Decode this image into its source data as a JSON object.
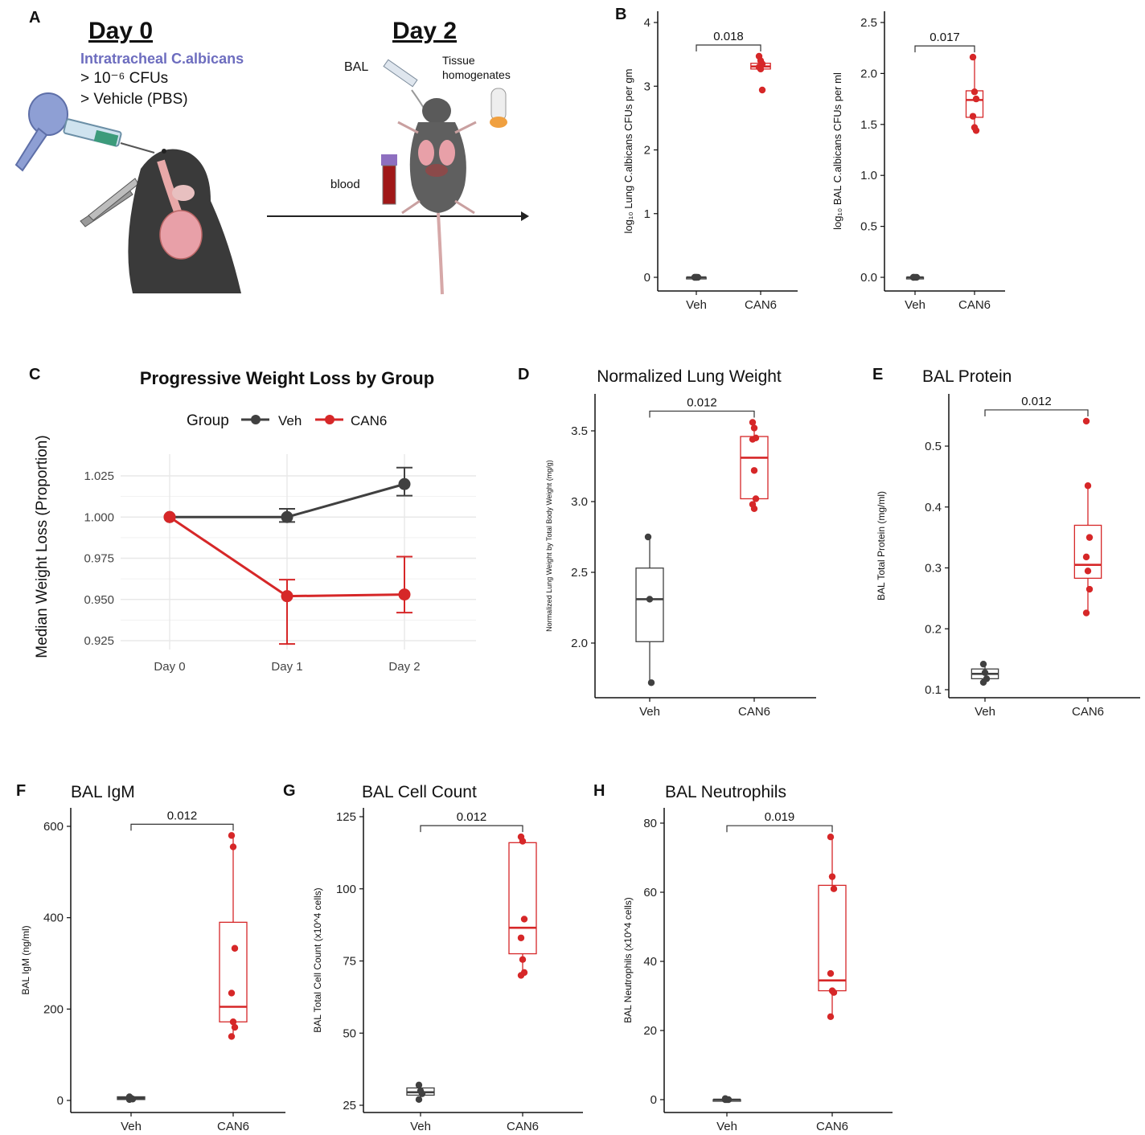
{
  "colors": {
    "veh": "#404040",
    "can6": "#d62728",
    "grid": "#e8e8e8",
    "axis": "#111111"
  },
  "panel_a": {
    "letter": "A",
    "day0_title": "Day 0",
    "day2_title": "Day 2",
    "route": "Intratracheal C.albicans",
    "dose_line": "> 10⁻⁶ CFUs",
    "vehicle_line": "> Vehicle (PBS)",
    "bal_label": "BAL",
    "tissue_label_1": "Tissue",
    "tissue_label_2": "homogenates",
    "blood_label": "blood"
  },
  "chart_data": [
    {
      "id": "B1",
      "letter": "B",
      "type": "box",
      "title": "",
      "ylabel": "log₁₀ Lung C.albicans CFUs per gm",
      "categories": [
        "Veh",
        "CAN6"
      ],
      "ylim": [
        0,
        4
      ],
      "yticks": [
        "0",
        "1",
        "2",
        "3",
        "4"
      ],
      "ytick_values": [
        0,
        1,
        2,
        3,
        4
      ],
      "pvalue": "0.018",
      "groups": [
        {
          "name": "Veh",
          "q1": 0,
          "median": 0,
          "q3": 0,
          "whisker_low": 0,
          "whisker_high": 0,
          "points": [
            0,
            0,
            0,
            0,
            0
          ]
        },
        {
          "name": "CAN6",
          "q1": 3.27,
          "median": 3.31,
          "q3": 3.36,
          "whisker_low": 3.22,
          "whisker_high": 3.47,
          "points": [
            3.47,
            3.4,
            3.35,
            3.3,
            3.27,
            2.94
          ]
        }
      ]
    },
    {
      "id": "B2",
      "letter": "",
      "type": "box",
      "title": "",
      "ylabel": "log₁₀ BAL C.albicans CFUs per ml",
      "categories": [
        "Veh",
        "CAN6"
      ],
      "ylim": [
        0,
        2.5
      ],
      "yticks": [
        "0.0",
        "0.5",
        "1.0",
        "1.5",
        "2.0",
        "2.5"
      ],
      "ytick_values": [
        0,
        0.5,
        1.0,
        1.5,
        2.0,
        2.5
      ],
      "pvalue": "0.017",
      "groups": [
        {
          "name": "Veh",
          "q1": 0,
          "median": 0,
          "q3": 0,
          "whisker_low": 0,
          "whisker_high": 0,
          "points": [
            0,
            0,
            0,
            0
          ]
        },
        {
          "name": "CAN6",
          "q1": 1.57,
          "median": 1.74,
          "q3": 1.83,
          "whisker_low": 1.44,
          "whisker_high": 2.16,
          "points": [
            2.16,
            1.82,
            1.75,
            1.58,
            1.47,
            1.44
          ]
        }
      ]
    },
    {
      "id": "C",
      "letter": "C",
      "type": "line",
      "title": "Progressive Weight Loss by Group",
      "legend_title": "Group",
      "legend_position": "top",
      "xlabel": "",
      "ylabel": "Median Weight Loss (Proportion)",
      "categories": [
        "Day 0",
        "Day 1",
        "Day 2"
      ],
      "ylim": [
        0.915,
        1.035
      ],
      "yticks": [
        "0.925",
        "0.950",
        "0.975",
        "1.000",
        "1.025"
      ],
      "ytick_values": [
        0.925,
        0.95,
        0.975,
        1.0,
        1.025
      ],
      "grid": true,
      "series": [
        {
          "name": "Veh",
          "values": [
            1.0,
            1.0,
            1.02
          ],
          "err_low": [
            1.0,
            0.997,
            1.013
          ],
          "err_high": [
            1.0,
            1.005,
            1.03
          ]
        },
        {
          "name": "CAN6",
          "values": [
            1.0,
            0.952,
            0.953
          ],
          "err_low": [
            1.0,
            0.923,
            0.942
          ],
          "err_high": [
            1.0,
            0.962,
            0.976
          ]
        }
      ]
    },
    {
      "id": "D",
      "letter": "D",
      "type": "box",
      "title": "Normalized Lung Weight",
      "ylabel": "Normalized Lung Weight by Total Body Weight (mg/g)",
      "categories": [
        "Veh",
        "CAN6"
      ],
      "ylim": [
        1.65,
        3.75
      ],
      "yticks": [
        "2.0",
        "2.5",
        "3.0",
        "3.5"
      ],
      "ytick_values": [
        2.0,
        2.5,
        3.0,
        3.5
      ],
      "pvalue": "0.012",
      "groups": [
        {
          "name": "Veh",
          "q1": 2.01,
          "median": 2.31,
          "q3": 2.53,
          "whisker_low": 1.72,
          "whisker_high": 2.75,
          "points": [
            2.75,
            2.31,
            1.72
          ]
        },
        {
          "name": "CAN6",
          "q1": 3.02,
          "median": 3.31,
          "q3": 3.46,
          "whisker_low": 2.95,
          "whisker_high": 3.56,
          "points": [
            3.56,
            3.52,
            3.45,
            3.44,
            3.22,
            3.02,
            2.98,
            2.95
          ]
        }
      ]
    },
    {
      "id": "E",
      "letter": "E",
      "type": "box",
      "title": "BAL Protein",
      "ylabel": "BAL Total Protein (mg/ml)",
      "categories": [
        "Veh",
        "CAN6"
      ],
      "ylim": [
        0.095,
        0.58
      ],
      "yticks": [
        "0.1",
        "0.2",
        "0.3",
        "0.4",
        "0.5"
      ],
      "ytick_values": [
        0.1,
        0.2,
        0.3,
        0.4,
        0.5
      ],
      "pvalue": "0.012",
      "groups": [
        {
          "name": "Veh",
          "q1": 0.118,
          "median": 0.126,
          "q3": 0.134,
          "whisker_low": 0.112,
          "whisker_high": 0.142,
          "points": [
            0.142,
            0.128,
            0.118,
            0.112
          ]
        },
        {
          "name": "CAN6",
          "q1": 0.283,
          "median": 0.305,
          "q3": 0.37,
          "whisker_low": 0.226,
          "whisker_high": 0.435,
          "points": [
            0.541,
            0.435,
            0.35,
            0.318,
            0.295,
            0.265,
            0.226
          ]
        }
      ]
    },
    {
      "id": "F",
      "letter": "F",
      "type": "box",
      "title": "BAL IgM",
      "ylabel": "BAL IgM (ng/ml)",
      "categories": [
        "Veh",
        "CAN6"
      ],
      "ylim": [
        -15,
        650
      ],
      "yticks": [
        "0",
        "200",
        "400",
        "600"
      ],
      "ytick_values": [
        0,
        200,
        400,
        600
      ],
      "pvalue": "0.012",
      "groups": [
        {
          "name": "Veh",
          "q1": 2,
          "median": 5,
          "q3": 8,
          "whisker_low": 1,
          "whisker_high": 9,
          "points": [
            8,
            5,
            3,
            2
          ]
        },
        {
          "name": "CAN6",
          "q1": 172,
          "median": 205,
          "q3": 390,
          "whisker_low": 140,
          "whisker_high": 580,
          "points": [
            580,
            555,
            333,
            235,
            172,
            160,
            140
          ]
        }
      ]
    },
    {
      "id": "G",
      "letter": "G",
      "type": "box",
      "title": "BAL Cell Count",
      "ylabel": "BAL Total Cell Count (x10^4 cells)",
      "categories": [
        "Veh",
        "CAN6"
      ],
      "ylim": [
        22,
        128
      ],
      "yticks": [
        "25",
        "50",
        "75",
        "100",
        "125"
      ],
      "ytick_values": [
        25,
        50,
        75,
        100,
        125
      ],
      "pvalue": "0.012",
      "groups": [
        {
          "name": "Veh",
          "q1": 28.5,
          "median": 29.5,
          "q3": 31,
          "whisker_low": 27,
          "whisker_high": 32,
          "points": [
            32,
            30,
            29,
            27
          ]
        },
        {
          "name": "CAN6",
          "q1": 77.5,
          "median": 86.5,
          "q3": 116,
          "whisker_low": 70,
          "whisker_high": 118,
          "points": [
            118,
            116.5,
            89.5,
            83,
            75.5,
            71,
            70
          ]
        }
      ]
    },
    {
      "id": "H",
      "letter": "H",
      "type": "box",
      "title": "BAL Neutrophils",
      "ylabel": "BAL Neutrophils (x10^4 cells)",
      "categories": [
        "Veh",
        "CAN6"
      ],
      "ylim": [
        -2,
        84
      ],
      "yticks": [
        "0",
        "20",
        "40",
        "60",
        "80"
      ],
      "ytick_values": [
        0,
        20,
        40,
        60,
        80
      ],
      "pvalue": "0.019",
      "groups": [
        {
          "name": "Veh",
          "q1": 0,
          "median": 0,
          "q3": 0,
          "whisker_low": 0,
          "whisker_high": 0,
          "points": [
            0.3,
            0,
            0,
            0
          ]
        },
        {
          "name": "CAN6",
          "q1": 31.5,
          "median": 34.5,
          "q3": 62,
          "whisker_low": 24,
          "whisker_high": 76,
          "points": [
            76,
            64.5,
            61,
            36.5,
            31.5,
            31,
            24
          ]
        }
      ]
    }
  ]
}
